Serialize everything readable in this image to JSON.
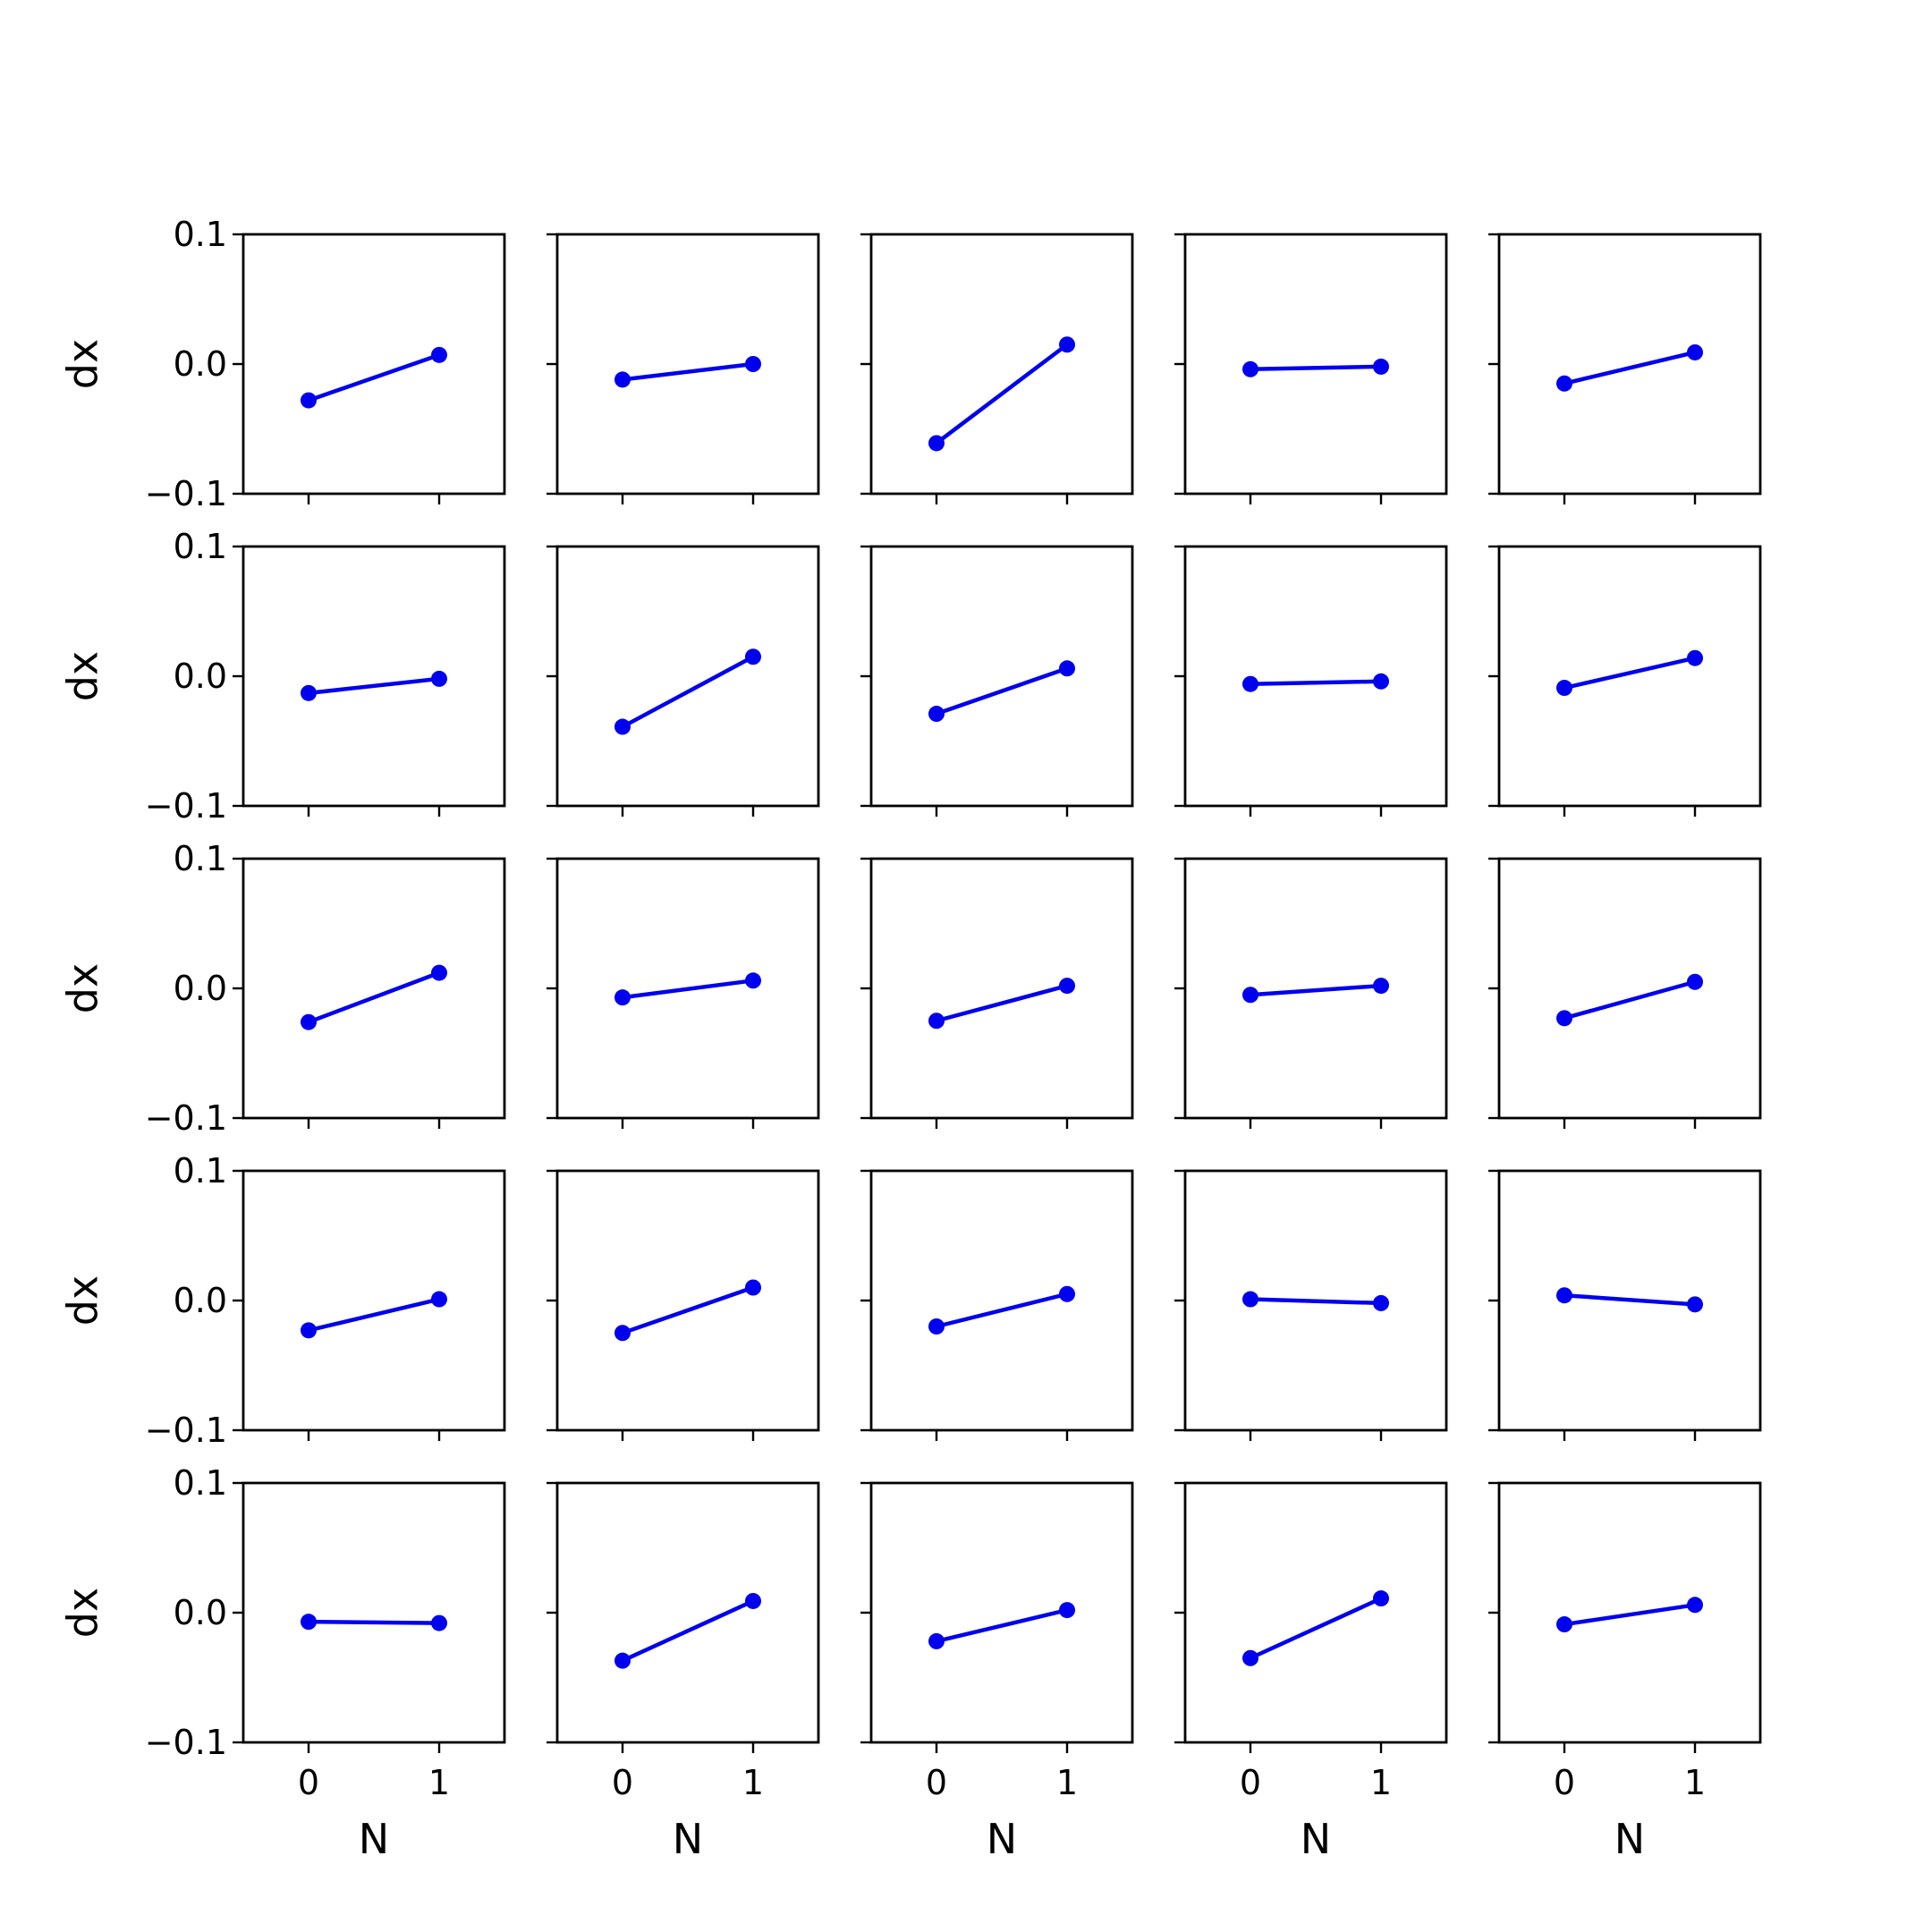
{
  "chart_data": {
    "type": "line",
    "layout": {
      "rows": 5,
      "cols": 5
    },
    "x": [
      0,
      1
    ],
    "xticks": [
      "0",
      "1"
    ],
    "xlim": [
      -0.5,
      1.5
    ],
    "ylim": [
      -0.1,
      0.1
    ],
    "yticks": [
      "−0.1",
      "0.0",
      "0.1"
    ],
    "xlabel": "N",
    "ylabel": "dx",
    "grid": false,
    "line_color": "#0000ee",
    "panels": [
      {
        "y": [
          -0.028,
          0.007
        ]
      },
      {
        "y": [
          -0.012,
          0.0
        ]
      },
      {
        "y": [
          -0.061,
          0.015
        ]
      },
      {
        "y": [
          -0.004,
          -0.002
        ]
      },
      {
        "y": [
          -0.015,
          0.009
        ]
      },
      {
        "y": [
          -0.013,
          -0.002
        ]
      },
      {
        "y": [
          -0.039,
          0.015
        ]
      },
      {
        "y": [
          -0.029,
          0.006
        ]
      },
      {
        "y": [
          -0.006,
          -0.004
        ]
      },
      {
        "y": [
          -0.009,
          0.014
        ]
      },
      {
        "y": [
          -0.026,
          0.012
        ]
      },
      {
        "y": [
          -0.007,
          0.006
        ]
      },
      {
        "y": [
          -0.025,
          0.002
        ]
      },
      {
        "y": [
          -0.005,
          0.002
        ]
      },
      {
        "y": [
          -0.023,
          0.005
        ]
      },
      {
        "y": [
          -0.023,
          0.001
        ]
      },
      {
        "y": [
          -0.025,
          0.01
        ]
      },
      {
        "y": [
          -0.02,
          0.005
        ]
      },
      {
        "y": [
          0.001,
          -0.002
        ]
      },
      {
        "y": [
          0.004,
          -0.003
        ]
      },
      {
        "y": [
          -0.007,
          -0.008
        ]
      },
      {
        "y": [
          -0.037,
          0.009
        ]
      },
      {
        "y": [
          -0.022,
          0.002
        ]
      },
      {
        "y": [
          -0.035,
          0.011
        ]
      },
      {
        "y": [
          -0.009,
          0.006
        ]
      }
    ]
  }
}
